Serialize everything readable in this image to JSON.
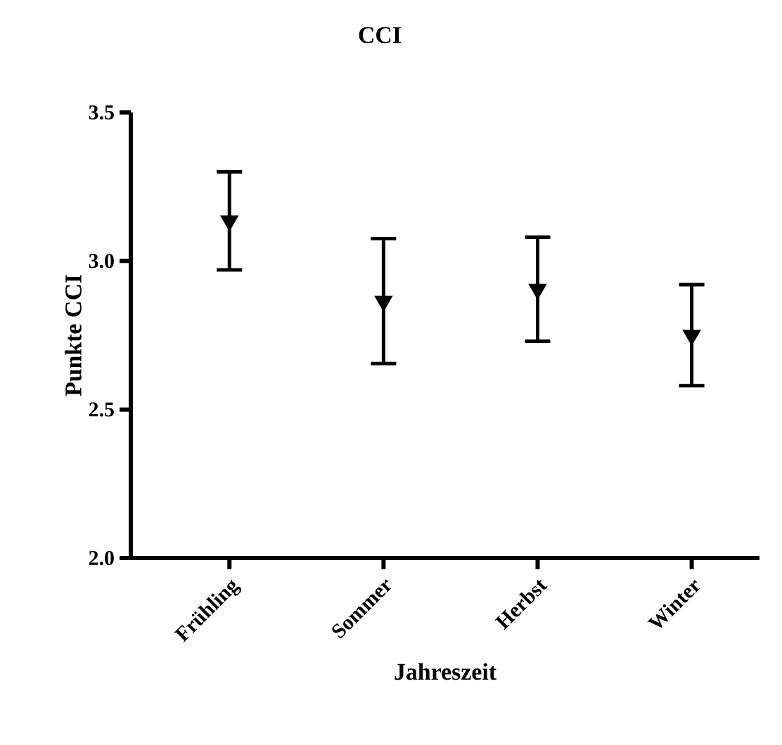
{
  "chart_data": {
    "type": "scatter",
    "title": "CCI",
    "xlabel": "Jahreszeit",
    "ylabel": "Punkte CCI",
    "categories": [
      "Frühling",
      "Sommer",
      "Herbst",
      "Winter"
    ],
    "values": [
      3.135,
      2.865,
      2.905,
      2.75
    ],
    "errors": [
      0.165,
      0.21,
      0.175,
      0.17
    ],
    "color": "#000000",
    "marker": "triangle",
    "ylim": [
      2.0,
      3.5
    ],
    "yticks": [
      {
        "value": 2.0,
        "label": "2.0"
      },
      {
        "value": 2.5,
        "label": "2.5"
      },
      {
        "value": 3.0,
        "label": "3.0"
      },
      {
        "value": 3.5,
        "label": "3.5"
      }
    ],
    "grid": false
  }
}
